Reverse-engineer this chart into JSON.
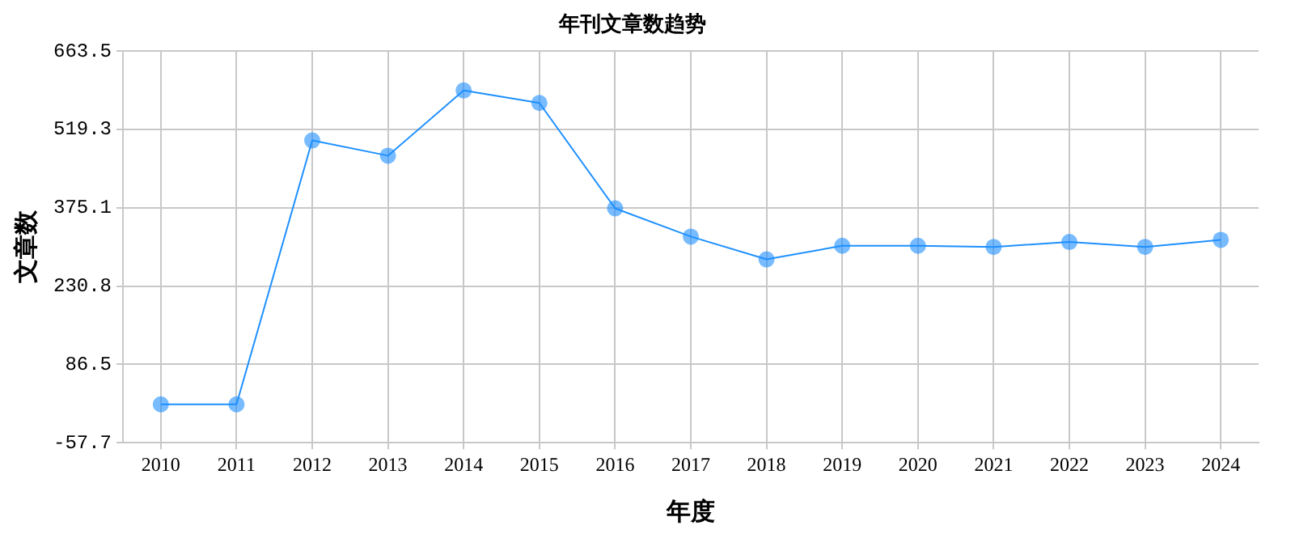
{
  "chart_data": {
    "type": "line",
    "title": "年刊文章数趋势",
    "xlabel": "年度",
    "ylabel": "文章数",
    "categories": [
      "2010",
      "2011",
      "2012",
      "2013",
      "2014",
      "2015",
      "2016",
      "2017",
      "2018",
      "2019",
      "2020",
      "2021",
      "2022",
      "2023",
      "2024"
    ],
    "series": [
      {
        "color": "#1e90ff",
        "values": [
          13,
          13,
          499,
          471,
          591,
          568,
          374,
          322,
          280,
          305,
          305,
          303,
          312,
          303,
          316
        ]
      }
    ],
    "ylim": [
      -57.7,
      663.5
    ],
    "yticks": [
      -57.7,
      86.5,
      230.8,
      375.1,
      519.3,
      663.5
    ],
    "grid": true,
    "legend": false,
    "marker": "circle",
    "line_style": "solid"
  }
}
